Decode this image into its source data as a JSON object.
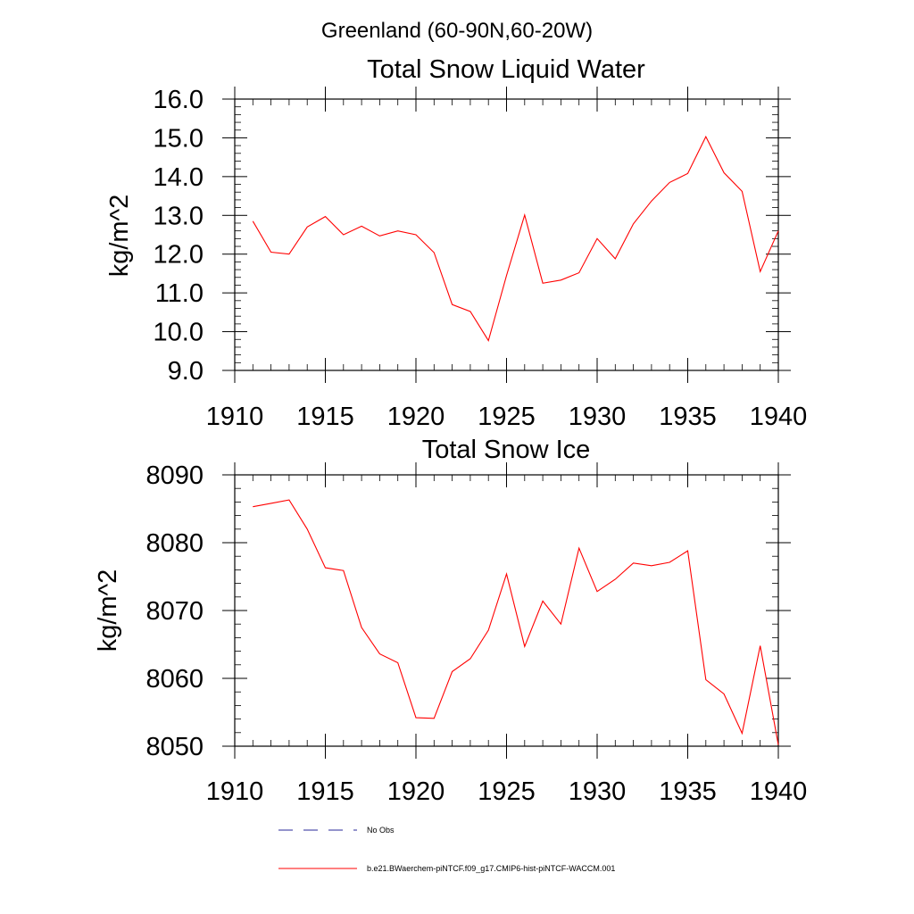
{
  "figure": {
    "suptitle": "Greenland (60-90N,60-20W)"
  },
  "chart_data": [
    {
      "type": "line",
      "title": "Total Snow Liquid Water",
      "xlabel": "",
      "ylabel": "kg/m^2",
      "xlim": [
        1910,
        1940
      ],
      "ylim": [
        9.0,
        16.0
      ],
      "x_ticks": [
        1910,
        1915,
        1920,
        1925,
        1930,
        1935,
        1940
      ],
      "x_tick_labels": [
        "1910",
        "1915",
        "1920",
        "1925",
        "1930",
        "1935",
        "1940"
      ],
      "y_ticks": [
        9,
        10,
        11,
        12,
        13,
        14,
        15,
        16
      ],
      "y_tick_labels": [
        "9.0",
        "10.0",
        "11.0",
        "12.0",
        "13.0",
        "14.0",
        "15.0",
        "16.0"
      ],
      "y_minor_step": 0.2,
      "x_minor_step": 1,
      "grid": false,
      "series": [
        {
          "name": "b.e21.BWaerchem-piNTCF.f09_g17.CMIP6-hist-piNTCF-WACCM.001",
          "color": "#ff0000",
          "x": [
            1911,
            1912,
            1913,
            1914,
            1915,
            1916,
            1917,
            1918,
            1919,
            1920,
            1921,
            1922,
            1923,
            1924,
            1925,
            1926,
            1927,
            1928,
            1929,
            1930,
            1931,
            1932,
            1933,
            1934,
            1935,
            1936,
            1937,
            1938,
            1939,
            1940
          ],
          "values": [
            12.85,
            12.05,
            12.0,
            12.7,
            12.97,
            12.5,
            12.72,
            12.47,
            12.6,
            12.5,
            12.04,
            10.7,
            10.52,
            9.77,
            11.45,
            13.01,
            11.25,
            11.33,
            11.52,
            12.4,
            11.88,
            12.78,
            13.37,
            13.85,
            14.08,
            15.03,
            14.1,
            13.62,
            11.55,
            12.6
          ]
        }
      ]
    },
    {
      "type": "line",
      "title": "Total Snow Ice",
      "xlabel": "",
      "ylabel": "kg/m^2",
      "xlim": [
        1910,
        1940
      ],
      "ylim": [
        8050,
        8090
      ],
      "x_ticks": [
        1910,
        1915,
        1920,
        1925,
        1930,
        1935,
        1940
      ],
      "x_tick_labels": [
        "1910",
        "1915",
        "1920",
        "1925",
        "1930",
        "1935",
        "1940"
      ],
      "y_ticks": [
        8050,
        8060,
        8070,
        8080,
        8090
      ],
      "y_tick_labels": [
        "8050",
        "8060",
        "8070",
        "8080",
        "8090"
      ],
      "y_minor_step": 2,
      "x_minor_step": 1,
      "grid": false,
      "series": [
        {
          "name": "b.e21.BWaerchem-piNTCF.f09_g17.CMIP6-hist-piNTCF-WACCM.001",
          "color": "#ff0000",
          "x": [
            1911,
            1912,
            1913,
            1914,
            1915,
            1916,
            1917,
            1918,
            1919,
            1920,
            1921,
            1922,
            1923,
            1924,
            1925,
            1926,
            1927,
            1928,
            1929,
            1930,
            1931,
            1932,
            1933,
            1934,
            1935,
            1936,
            1937,
            1938,
            1939,
            1940
          ],
          "values": [
            8085.3,
            8085.8,
            8086.3,
            8082.0,
            8076.3,
            8075.9,
            8067.5,
            8063.6,
            8062.3,
            8054.2,
            8054.1,
            8061.0,
            8062.9,
            8067.1,
            8075.4,
            8064.7,
            8071.4,
            8068.0,
            8079.2,
            8072.8,
            8074.6,
            8077.0,
            8076.6,
            8077.1,
            8078.8,
            8059.8,
            8057.7,
            8051.9,
            8064.8,
            8050.2
          ]
        }
      ]
    }
  ],
  "legend": {
    "placement": "bottom",
    "entries": [
      {
        "label": "No Obs",
        "color": "#2a2a9a",
        "style": "dashed"
      },
      {
        "label": "b.e21.BWaerchem-piNTCF.f09_g17.CMIP6-hist-piNTCF-WACCM.001",
        "color": "#ff0000",
        "style": "solid"
      }
    ]
  }
}
